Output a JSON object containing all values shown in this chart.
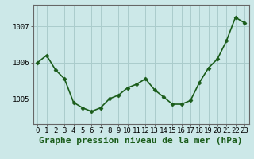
{
  "x": [
    0,
    1,
    2,
    3,
    4,
    5,
    6,
    7,
    8,
    9,
    10,
    11,
    12,
    13,
    14,
    15,
    16,
    17,
    18,
    19,
    20,
    21,
    22,
    23
  ],
  "y": [
    1006.0,
    1006.2,
    1005.8,
    1005.55,
    1004.9,
    1004.75,
    1004.65,
    1004.75,
    1005.0,
    1005.1,
    1005.3,
    1005.4,
    1005.55,
    1005.25,
    1005.05,
    1004.85,
    1004.85,
    1004.95,
    1005.45,
    1005.85,
    1006.1,
    1006.6,
    1007.25,
    1007.1
  ],
  "line_color": "#1a5c1a",
  "marker": "D",
  "marker_size": 2.5,
  "bg_color": "#cce8e8",
  "grid_color": "#aacccc",
  "xlabel": "Graphe pression niveau de la mer (hPa)",
  "xlabel_fontsize": 8,
  "yticks": [
    1005,
    1006,
    1007
  ],
  "ylim": [
    1004.3,
    1007.6
  ],
  "xlim": [
    -0.5,
    23.5
  ],
  "tick_fontsize": 6.5,
  "line_width": 1.2
}
